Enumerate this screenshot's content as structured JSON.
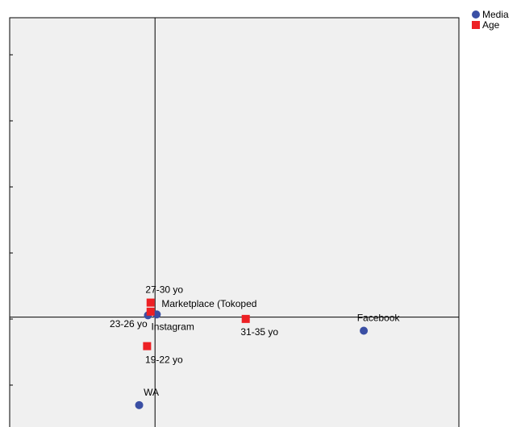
{
  "chart_data": {
    "type": "scatter",
    "title": "",
    "xlabel": "",
    "ylabel": "",
    "xlim": [
      -1.65,
      3.45
    ],
    "ylim": [
      -1.3,
      3.3
    ],
    "grid": false,
    "legend_placement": "top-right",
    "reference_lines": {
      "x": 0,
      "y": 0
    },
    "series": [
      {
        "name": "Media",
        "marker": "circle",
        "color": "#3a4fa4",
        "points": [
          {
            "label": "Marketplace (Tokoped",
            "x": 0.02,
            "y": 0.03
          },
          {
            "label": "Instagram",
            "x": -0.08,
            "y": 0.02
          },
          {
            "label": "Facebook",
            "x": 2.37,
            "y": -0.15
          },
          {
            "label": "WA",
            "x": -0.18,
            "y": -0.97
          }
        ]
      },
      {
        "name": "Age",
        "marker": "square",
        "color": "#ed2024",
        "points": [
          {
            "label": "27-30 yo",
            "x": -0.05,
            "y": 0.16
          },
          {
            "label": "23-26 yo",
            "x": -0.05,
            "y": 0.06
          },
          {
            "label": "31-35 yo",
            "x": 1.03,
            "y": -0.02
          },
          {
            "label": "19-22 yo",
            "x": -0.09,
            "y": -0.32
          }
        ]
      }
    ]
  }
}
